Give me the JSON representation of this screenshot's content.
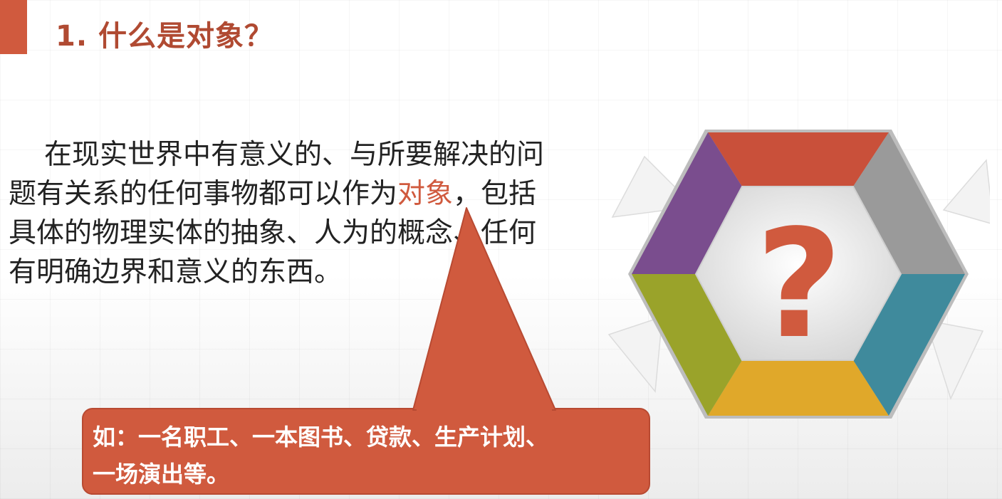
{
  "slide": {
    "title": "1. 什么是对象？",
    "body_lines": [
      "在现实世界中有意义的、与所要解决的问",
      "题有关系的任何事物都可以作为",
      "对象",
      "，包括",
      "具体的物理实体的抽象、人为的概念、任何",
      "有明确边界和意义的东西。"
    ],
    "callout_lines": [
      "如：一名职工、一本图书、贷款、生产计划、",
      "一场演出等。"
    ],
    "graphic": {
      "symbol": "?",
      "icon": "question-mark-hexagon-icon"
    },
    "colors": {
      "accent": "#d05a3e",
      "title": "#b04a32",
      "segments": [
        "#c9503a",
        "#9a9a9a",
        "#3f8a9c",
        "#e0a82a",
        "#9aa32a",
        "#7a4d8e"
      ]
    }
  }
}
